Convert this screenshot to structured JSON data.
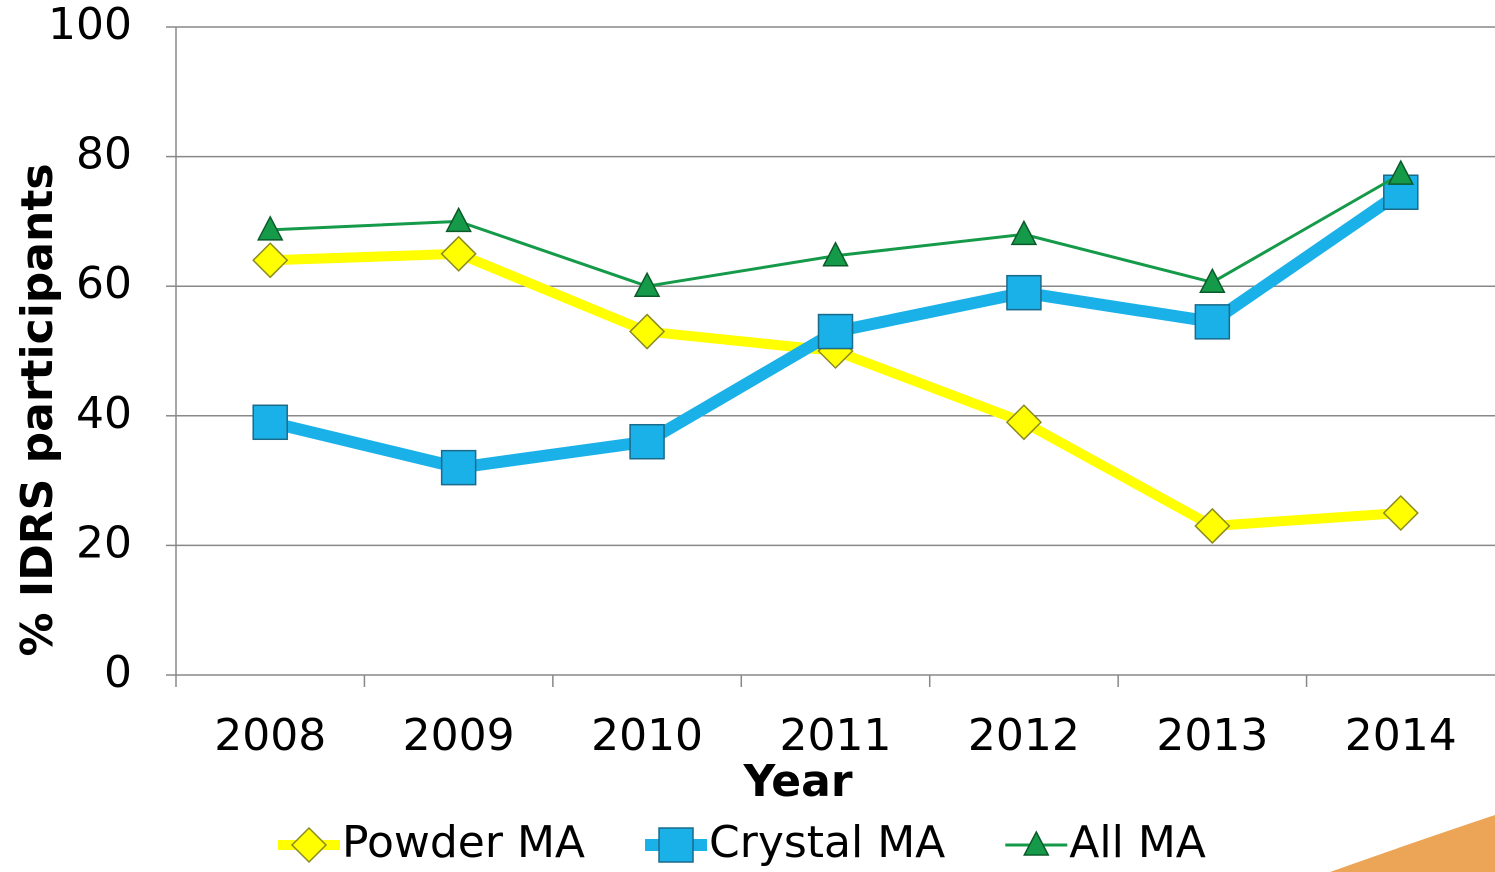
{
  "chart_data": {
    "type": "line",
    "y_label": "% IDRS participants",
    "x_label": "Year",
    "categories": [
      "2008",
      "2009",
      "2010",
      "2011",
      "2012",
      "2013",
      "2014"
    ],
    "series": [
      {
        "name": "Powder MA",
        "color": "#ffff00",
        "marker": "diamond",
        "values": [
          64,
          65,
          53,
          50,
          39,
          23,
          25
        ]
      },
      {
        "name": "Crystal MA",
        "color": "#1ab0e8",
        "marker": "square",
        "values": [
          39,
          32,
          36,
          53,
          59,
          54.5,
          74.5
        ]
      },
      {
        "name": "All MA",
        "color": "#159a4a",
        "marker": "triangle",
        "values": [
          68.7,
          70,
          60,
          64.7,
          68,
          60.6,
          77.3
        ]
      }
    ],
    "ylim": [
      0,
      100
    ],
    "yticks": [
      0,
      20,
      40,
      60,
      80,
      100
    ],
    "grid": true,
    "legend": "bottom"
  }
}
